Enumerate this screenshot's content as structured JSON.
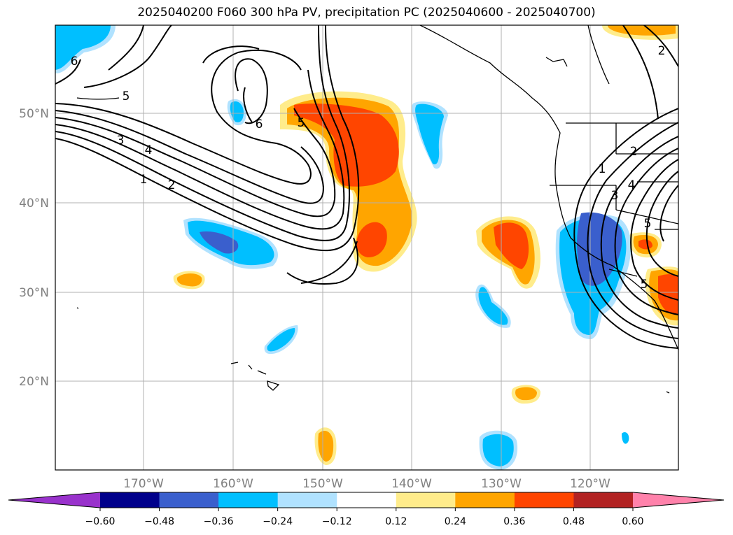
{
  "title": "2025040200 F060 300 hPa PV, precipitation PC (2025040600 - 2025040700)",
  "lat_labels": [
    "50°N",
    "40°N",
    "30°N",
    "20°N"
  ],
  "lon_labels": [
    "170°W",
    "160°W",
    "150°W",
    "140°W",
    "130°W",
    "120°W"
  ],
  "contour_labels": [
    "6",
    "5",
    "3",
    "4",
    "1",
    "2",
    "5",
    "6",
    "1",
    "2",
    "2",
    "3",
    "4",
    "5",
    "5"
  ],
  "colorbar": {
    "ticks": [
      "−0.60",
      "−0.48",
      "−0.36",
      "−0.24",
      "−0.12",
      "0.12",
      "0.24",
      "0.36",
      "0.48",
      "0.60"
    ],
    "colors": [
      "#9932CC",
      "#00008B",
      "#3A5FCD",
      "#00BFFF",
      "#B0E2FF",
      "#FFFFFF",
      "#FFEC8B",
      "#FFA500",
      "#FF4500",
      "#B22222",
      "#FF82AB"
    ]
  },
  "colors": {
    "grid": "#b0b0b0",
    "contour": "#000000"
  }
}
